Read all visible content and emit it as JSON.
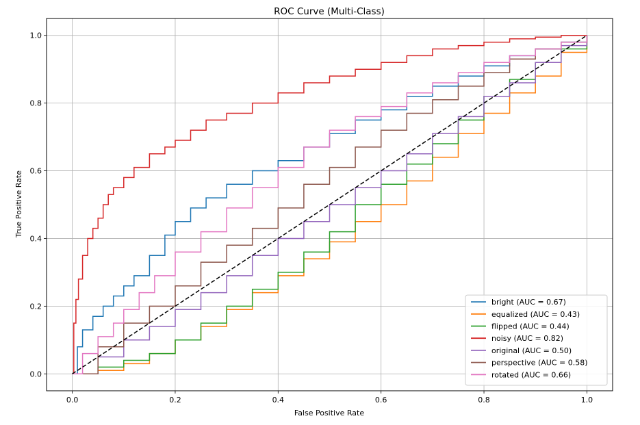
{
  "chart_data": {
    "type": "line",
    "title": "ROC Curve (Multi-Class)",
    "xlabel": "False Positive Rate",
    "ylabel": "True Positive Rate",
    "xlim": [
      -0.05,
      1.05
    ],
    "ylim": [
      -0.05,
      1.05
    ],
    "xticks": [
      0.0,
      0.2,
      0.4,
      0.6,
      0.8,
      1.0
    ],
    "yticks": [
      0.0,
      0.2,
      0.4,
      0.6,
      0.8,
      1.0
    ],
    "xtick_labels": [
      "0.0",
      "0.2",
      "0.4",
      "0.6",
      "0.8",
      "1.0"
    ],
    "ytick_labels": [
      "0.0",
      "0.2",
      "0.4",
      "0.6",
      "0.8",
      "1.0"
    ],
    "grid": true,
    "legend_position": "lower-right",
    "series": [
      {
        "name": "bright (AUC = 0.67)",
        "color": "#1f77b4",
        "x": [
          0,
          0.01,
          0.02,
          0.04,
          0.06,
          0.08,
          0.1,
          0.12,
          0.15,
          0.18,
          0.2,
          0.23,
          0.26,
          0.3,
          0.35,
          0.4,
          0.45,
          0.5,
          0.55,
          0.6,
          0.65,
          0.7,
          0.75,
          0.8,
          0.85,
          0.9,
          0.95,
          1.0
        ],
        "y": [
          0,
          0.08,
          0.13,
          0.17,
          0.2,
          0.23,
          0.26,
          0.29,
          0.35,
          0.41,
          0.45,
          0.49,
          0.52,
          0.56,
          0.6,
          0.63,
          0.67,
          0.71,
          0.75,
          0.78,
          0.82,
          0.85,
          0.88,
          0.91,
          0.94,
          0.96,
          0.98,
          1.0
        ]
      },
      {
        "name": "equalized (AUC = 0.43)",
        "color": "#ff7f0e",
        "x": [
          0,
          0.05,
          0.1,
          0.15,
          0.2,
          0.25,
          0.3,
          0.35,
          0.4,
          0.45,
          0.5,
          0.55,
          0.6,
          0.65,
          0.7,
          0.75,
          0.8,
          0.85,
          0.9,
          0.95,
          1.0
        ],
        "y": [
          0,
          0.01,
          0.03,
          0.06,
          0.1,
          0.14,
          0.19,
          0.24,
          0.29,
          0.34,
          0.39,
          0.45,
          0.5,
          0.57,
          0.64,
          0.71,
          0.77,
          0.83,
          0.88,
          0.95,
          1.0
        ]
      },
      {
        "name": "flipped (AUC = 0.44)",
        "color": "#2ca02c",
        "x": [
          0,
          0.05,
          0.1,
          0.15,
          0.2,
          0.25,
          0.3,
          0.35,
          0.4,
          0.45,
          0.5,
          0.55,
          0.6,
          0.65,
          0.7,
          0.75,
          0.8,
          0.85,
          0.9,
          0.95,
          1.0
        ],
        "y": [
          0,
          0.02,
          0.04,
          0.06,
          0.1,
          0.15,
          0.2,
          0.25,
          0.3,
          0.36,
          0.42,
          0.5,
          0.56,
          0.62,
          0.68,
          0.75,
          0.82,
          0.87,
          0.92,
          0.96,
          1.0
        ]
      },
      {
        "name": "noisy (AUC = 0.82)",
        "color": "#d62728",
        "x": [
          0,
          0.003,
          0.007,
          0.012,
          0.02,
          0.03,
          0.04,
          0.05,
          0.06,
          0.07,
          0.08,
          0.1,
          0.12,
          0.15,
          0.18,
          0.2,
          0.23,
          0.26,
          0.3,
          0.35,
          0.4,
          0.45,
          0.5,
          0.55,
          0.6,
          0.65,
          0.7,
          0.75,
          0.8,
          0.85,
          0.9,
          0.95,
          1.0
        ],
        "y": [
          0,
          0.15,
          0.22,
          0.28,
          0.35,
          0.4,
          0.43,
          0.46,
          0.5,
          0.53,
          0.55,
          0.58,
          0.61,
          0.65,
          0.67,
          0.69,
          0.72,
          0.75,
          0.77,
          0.8,
          0.83,
          0.86,
          0.88,
          0.9,
          0.92,
          0.94,
          0.96,
          0.97,
          0.98,
          0.99,
          0.995,
          1.0,
          1.0
        ]
      },
      {
        "name": "original (AUC = 0.50)",
        "color": "#9467bd",
        "x": [
          0,
          0.05,
          0.1,
          0.15,
          0.2,
          0.25,
          0.3,
          0.35,
          0.4,
          0.45,
          0.5,
          0.55,
          0.6,
          0.65,
          0.7,
          0.75,
          0.8,
          0.85,
          0.9,
          0.95,
          1.0
        ],
        "y": [
          0,
          0.05,
          0.1,
          0.14,
          0.19,
          0.24,
          0.29,
          0.35,
          0.4,
          0.45,
          0.5,
          0.55,
          0.6,
          0.65,
          0.71,
          0.76,
          0.82,
          0.86,
          0.92,
          0.97,
          1.0
        ]
      },
      {
        "name": "perspective (AUC = 0.58)",
        "color": "#8c564b",
        "x": [
          0,
          0.05,
          0.1,
          0.15,
          0.2,
          0.25,
          0.3,
          0.35,
          0.4,
          0.45,
          0.5,
          0.55,
          0.6,
          0.65,
          0.7,
          0.75,
          0.8,
          0.85,
          0.9,
          0.95,
          1.0
        ],
        "y": [
          0,
          0.08,
          0.15,
          0.2,
          0.26,
          0.33,
          0.38,
          0.43,
          0.49,
          0.56,
          0.61,
          0.67,
          0.72,
          0.77,
          0.81,
          0.85,
          0.89,
          0.93,
          0.96,
          0.98,
          1.0
        ]
      },
      {
        "name": "rotated (AUC = 0.66)",
        "color": "#e377c2",
        "x": [
          0,
          0.02,
          0.05,
          0.08,
          0.1,
          0.13,
          0.16,
          0.2,
          0.25,
          0.3,
          0.35,
          0.4,
          0.45,
          0.5,
          0.55,
          0.6,
          0.65,
          0.7,
          0.75,
          0.8,
          0.85,
          0.9,
          0.95,
          1.0
        ],
        "y": [
          0,
          0.06,
          0.11,
          0.15,
          0.19,
          0.24,
          0.29,
          0.36,
          0.42,
          0.49,
          0.55,
          0.61,
          0.67,
          0.72,
          0.76,
          0.79,
          0.83,
          0.86,
          0.89,
          0.92,
          0.94,
          0.96,
          0.98,
          1.0
        ]
      },
      {
        "name": "",
        "color": "#000000",
        "dashed": true,
        "x": [
          0,
          1
        ],
        "y": [
          0,
          1
        ]
      }
    ]
  }
}
